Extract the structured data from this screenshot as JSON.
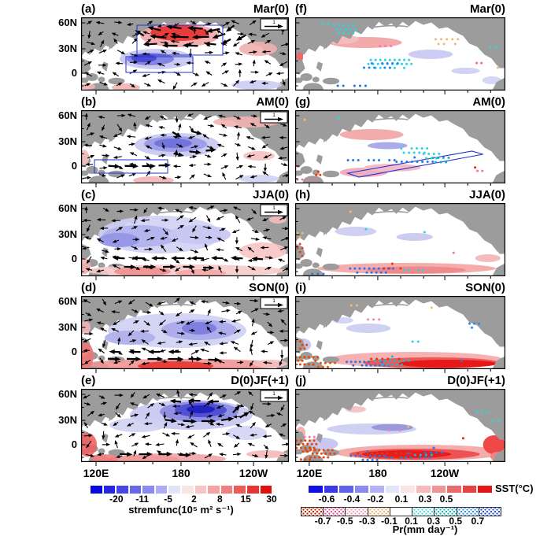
{
  "figure": {
    "rows": [
      {
        "left_id": "(a)",
        "right_id": "(f)",
        "season": "Mar(0)"
      },
      {
        "left_id": "(b)",
        "right_id": "(g)",
        "season": "AM(0)"
      },
      {
        "left_id": "(c)",
        "right_id": "(h)",
        "season": "JJA(0)"
      },
      {
        "left_id": "(d)",
        "right_id": "(i)",
        "season": "SON(0)"
      },
      {
        "left_id": "(e)",
        "right_id": "(j)",
        "season": "D(0)JF(+1)"
      }
    ],
    "y_ticks": [
      "60N",
      "30N",
      "0"
    ],
    "x_ticks": [
      "120E",
      "180",
      "120W"
    ],
    "vector_ref": "1",
    "land_color": "#9c9c9c",
    "outline_color": "#2233cc"
  },
  "colorbars": {
    "streamfunction": {
      "label": "stremfunc(10⁵ m² s⁻¹)",
      "ticks": [
        "-20",
        "-11",
        "-5",
        "2",
        "8",
        "15",
        "30"
      ],
      "colors": [
        "#0808e0",
        "#2626e6",
        "#4646ea",
        "#6868ee",
        "#8a8af2",
        "#adadf6",
        "#e2e2fb",
        "#fbe4e4",
        "#f8c4c4",
        "#f4a2a2",
        "#f17f7f",
        "#ed5a5a",
        "#e83434",
        "#e30e0e"
      ]
    },
    "sst": {
      "label": "SST(°C)",
      "ticks": [
        "-0.6",
        "-0.4",
        "-0.2",
        "0.1",
        "0.3",
        "0.5"
      ],
      "colors": [
        "#1212e2",
        "#3a3ae8",
        "#6262ec",
        "#8a8af1",
        "#b2b2f6",
        "#e4e4fb",
        "#fbe4e4",
        "#f6baba",
        "#f19494",
        "#ec6c6c",
        "#e74343",
        "#e21616"
      ]
    },
    "precip": {
      "label": "Pr(mm day⁻¹)",
      "ticks": [
        "-0.7",
        "-0.5",
        "-0.3",
        "-0.1",
        "0.1",
        "0.3",
        "0.5",
        "0.7"
      ],
      "dot_colors": [
        "#cc2200",
        "#e0559b",
        "#f0a3bb",
        "#f0b678",
        "",
        "#57dede",
        "#1cb8b8",
        "#3b94e8",
        "#2255dd"
      ]
    }
  },
  "chart_data": {
    "type": "heatmap",
    "subtype": "seasonal-anomaly-map-grid-pacific",
    "grid": "5 rows x 2 columns",
    "seasons": [
      "Mar(0)",
      "AM(0)",
      "JJA(0)",
      "SON(0)",
      "D(0)JF(+1)"
    ],
    "panel_ids": {
      "left": [
        "(a)",
        "(b)",
        "(c)",
        "(d)",
        "(e)"
      ],
      "right": [
        "(f)",
        "(g)",
        "(h)",
        "(i)",
        "(j)"
      ]
    },
    "left_column": {
      "variable": "stremfunc",
      "units": "10⁵ m² s⁻¹",
      "colorbar_ticks": [
        -20,
        -11,
        -5,
        2,
        8,
        15,
        30
      ],
      "overlay": "wind vectors",
      "vector_reference_value": 1,
      "features": {
        "(a)": "strong positive (red) center 30-60N west-central N Pacific with dense westward vectors; negative (blue) band 5-25N; two blue outline boxes",
        "(b)": "negative (blue) center ~20-35N central Pacific; blue outline box along western equatorial Pacific",
        "(c)": "broad weak negative shading over west/central N Pacific; positive band near and south of equator; westward vectors north of equator",
        "(d)": "broad negative shading across N Pacific; strong positive band along equator with eastward equatorial vectors",
        "(e)": "strong negative center ~35-50N central N Pacific; positive along western equator and far-west boundary"
      }
    },
    "right_column": {
      "shading_variable": "SST",
      "shading_units": "°C",
      "sst_colorbar_ticks": [
        -0.6,
        -0.4,
        -0.2,
        0.1,
        0.3,
        0.5
      ],
      "dots_variable": "Pr",
      "dots_units": "mm day⁻¹",
      "pr_colorbar_ticks": [
        -0.7,
        -0.5,
        -0.3,
        -0.1,
        0.1,
        0.3,
        0.5,
        0.7
      ],
      "features": {
        "(f)": "warm band ~35-45N west Pacific; cluster of positive Pr dots (blue/cyan) 0-15N central Pacific; negative Pr dots over NE Pacific land",
        "(g)": "blue outlined parallelogram slanting from western equatorial Pacific to ~25N east Pacific; positive Pr dots along and south of it",
        "(h)": "weak cool patches in N Pacific; warm band south of equator with mixed positive/negative Pr dots",
        "(i)": "strong equatorial warm band central/east Pacific; negative Pr dots (red/orange) far west, positive (blue/cyan) central",
        "(j)": "strong equatorial warm band persists; negative Pr dots in far west, weak cool band ~30-40N"
      }
    },
    "x_axis": {
      "tick_labels": [
        "120E",
        "180",
        "120W"
      ]
    },
    "y_axis": {
      "tick_labels": [
        "60N",
        "30N",
        "0"
      ]
    }
  }
}
